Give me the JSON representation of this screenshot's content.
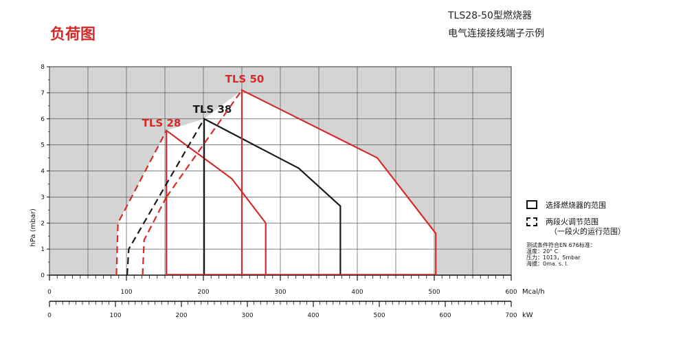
{
  "header": {
    "title": "负荷图",
    "model": "TLS28-50型燃烧器",
    "subtitle": "电气连接接线端子示例"
  },
  "legend": {
    "solid_label": "选择燃烧器的范围",
    "dashed_label_line1": "两段火调节范围",
    "dashed_label_line2": "（一段火的运行范围）"
  },
  "conditions": {
    "line1": "测试条件符合EN 676标准：",
    "line2": "温度：20° C",
    "line3": "压力：1013，5mbar",
    "line4": "海拔：0ma. s. l."
  },
  "colors": {
    "red": "#d42a2a",
    "black": "#1a1a1a",
    "panel": "#d4d4d4",
    "grid": "#555555"
  },
  "chart_data": {
    "type": "line",
    "ylabel": "hPa (mbar)",
    "ylim": [
      0,
      8
    ],
    "yticks": [
      0,
      1,
      2,
      3,
      4,
      5,
      6,
      7,
      8
    ],
    "x_primary": {
      "unit": "Mcal/h",
      "range": [
        0,
        600
      ],
      "ticks": [
        0,
        100,
        200,
        300,
        400,
        500,
        600
      ]
    },
    "x_secondary": {
      "unit": "kW",
      "range": [
        0,
        700
      ],
      "ticks": [
        0,
        100,
        200,
        300,
        400,
        500,
        600,
        700
      ]
    },
    "series": [
      {
        "name": "TLS 28",
        "color": "#d42a2a",
        "range": [
          [
            152,
            0
          ],
          [
            152,
            5.55
          ],
          [
            237,
            3.7
          ],
          [
            281,
            2.0
          ],
          [
            281,
            0
          ]
        ],
        "two_stage": [
          [
            87,
            0
          ],
          [
            89,
            2.0
          ],
          [
            152,
            5.55
          ]
        ],
        "two_stage_inner": [
          [
            121,
            0
          ],
          [
            123,
            1.35
          ],
          [
            152,
            3.0
          ]
        ]
      },
      {
        "name": "TLS 38",
        "color": "#1a1a1a",
        "range": [
          [
            201,
            0
          ],
          [
            201,
            6.0
          ],
          [
            324,
            4.1
          ],
          [
            378,
            2.65
          ],
          [
            378,
            0
          ]
        ],
        "two_stage": [
          [
            101,
            0
          ],
          [
            103,
            1.0
          ],
          [
            201,
            6.0
          ]
        ]
      },
      {
        "name": "TLS 50",
        "color": "#d42a2a",
        "range": [
          [
            250,
            0
          ],
          [
            250,
            7.1
          ],
          [
            426,
            4.5
          ],
          [
            502,
            1.6
          ],
          [
            502,
            0
          ]
        ],
        "two_stage": [
          [
            152,
            3.0
          ],
          [
            250,
            7.1
          ]
        ]
      }
    ]
  }
}
